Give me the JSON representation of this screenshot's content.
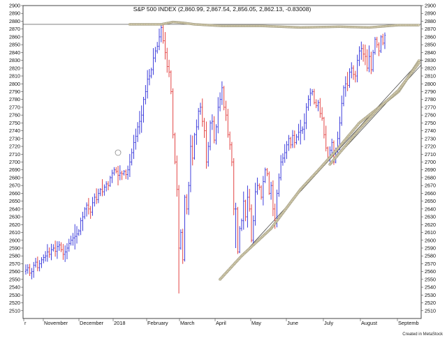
{
  "chart_data": {
    "type": "ohlc",
    "title": "S&P 500 INDEX (2,860.99, 2,867.54, 2,856.05, 2,862.13, -0.83008)",
    "credit": "Created in MetaStock",
    "ylim": [
      2500,
      2900
    ],
    "y_ticks": [
      2510,
      2520,
      2530,
      2540,
      2550,
      2560,
      2570,
      2580,
      2590,
      2600,
      2610,
      2620,
      2630,
      2640,
      2650,
      2660,
      2670,
      2680,
      2690,
      2700,
      2710,
      2720,
      2730,
      2740,
      2750,
      2760,
      2770,
      2780,
      2790,
      2800,
      2810,
      2820,
      2830,
      2840,
      2850,
      2860,
      2870,
      2880,
      2890,
      2900
    ],
    "x_labels": [
      "r",
      "November",
      "December",
      "2018",
      "February",
      "March",
      "April",
      "May",
      "June",
      "July",
      "August",
      "Septemb"
    ],
    "grid": false,
    "up_color": "#2a2ad8",
    "down_color": "#e03030",
    "closes": [
      2562,
      2565,
      2558,
      2560,
      2568,
      2572,
      2565,
      2570,
      2575,
      2578,
      2580,
      2585,
      2582,
      2588,
      2590,
      2586,
      2592,
      2594,
      2588,
      2582,
      2585,
      2590,
      2596,
      2600,
      2603,
      2605,
      2608,
      2612,
      2625,
      2630,
      2640,
      2645,
      2640,
      2636,
      2648,
      2655,
      2652,
      2660,
      2665,
      2662,
      2668,
      2672,
      2670,
      2680,
      2686,
      2690,
      2688,
      2683,
      2686,
      2685,
      2688,
      2684,
      2690,
      2700,
      2712,
      2725,
      2733,
      2745,
      2752,
      2760,
      2780,
      2790,
      2806,
      2810,
      2818,
      2833,
      2842,
      2848,
      2860,
      2872,
      2855,
      2840,
      2822,
      2815,
      2790,
      2735,
      2700,
      2665,
      2590,
      2610,
      2575,
      2655,
      2640,
      2670,
      2720,
      2705,
      2735,
      2745,
      2765,
      2770,
      2752,
      2740,
      2700,
      2720,
      2750,
      2752,
      2728,
      2745,
      2770,
      2780,
      2795,
      2770,
      2760,
      2735,
      2722,
      2700,
      2640,
      2640,
      2585,
      2615,
      2625,
      2650,
      2630,
      2655,
      2640,
      2600,
      2625,
      2662,
      2670,
      2668,
      2655,
      2675,
      2690,
      2685,
      2660,
      2670,
      2640,
      2625,
      2660,
      2680,
      2700,
      2705,
      2712,
      2722,
      2730,
      2722,
      2734,
      2725,
      2732,
      2738,
      2740,
      2742,
      2750,
      2770,
      2780,
      2788,
      2790,
      2776,
      2772,
      2776,
      2762,
      2756,
      2735,
      2718,
      2705,
      2715,
      2725,
      2700,
      2715,
      2730,
      2750,
      2775,
      2795,
      2800,
      2798,
      2815,
      2820,
      2812,
      2810,
      2830,
      2842,
      2845,
      2838,
      2835,
      2820,
      2835,
      2818,
      2840,
      2857,
      2850,
      2842,
      2860,
      2852,
      2862
    ],
    "trendlines": [
      {
        "label": "resistance",
        "from": [
          2,
          2876
        ],
        "to": [
          202,
          2876
        ]
      },
      {
        "label": "support-1",
        "from": [
          99,
          2550
        ],
        "to": [
          202,
          2831
        ]
      },
      {
        "label": "support-2",
        "from": [
          155,
          2697
        ],
        "to": [
          202,
          2824
        ]
      }
    ],
    "beaded_lines": [
      {
        "points": [
          [
            53,
            2876
          ],
          [
            63,
            2876
          ],
          [
            69,
            2876
          ],
          [
            75,
            2879
          ],
          [
            80,
            2878
          ],
          [
            86,
            2876
          ],
          [
            100,
            2874
          ],
          [
            120,
            2874
          ],
          [
            140,
            2872
          ],
          [
            160,
            2873
          ],
          [
            175,
            2872
          ],
          [
            190,
            2875
          ],
          [
            202,
            2875
          ]
        ]
      },
      {
        "points": [
          [
            99,
            2550
          ],
          [
            110,
            2580
          ],
          [
            125,
            2615
          ],
          [
            140,
            2665
          ],
          [
            150,
            2692
          ],
          [
            160,
            2720
          ],
          [
            170,
            2750
          ],
          [
            180,
            2770
          ],
          [
            190,
            2790
          ],
          [
            202,
            2831
          ]
        ]
      },
      {
        "points": [
          [
            155,
            2697
          ],
          [
            160,
            2712
          ],
          [
            170,
            2742
          ],
          [
            180,
            2769
          ],
          [
            190,
            2792
          ],
          [
            202,
            2828
          ]
        ]
      }
    ],
    "marker": {
      "type": "circle",
      "x": 47,
      "y": 2712
    }
  }
}
